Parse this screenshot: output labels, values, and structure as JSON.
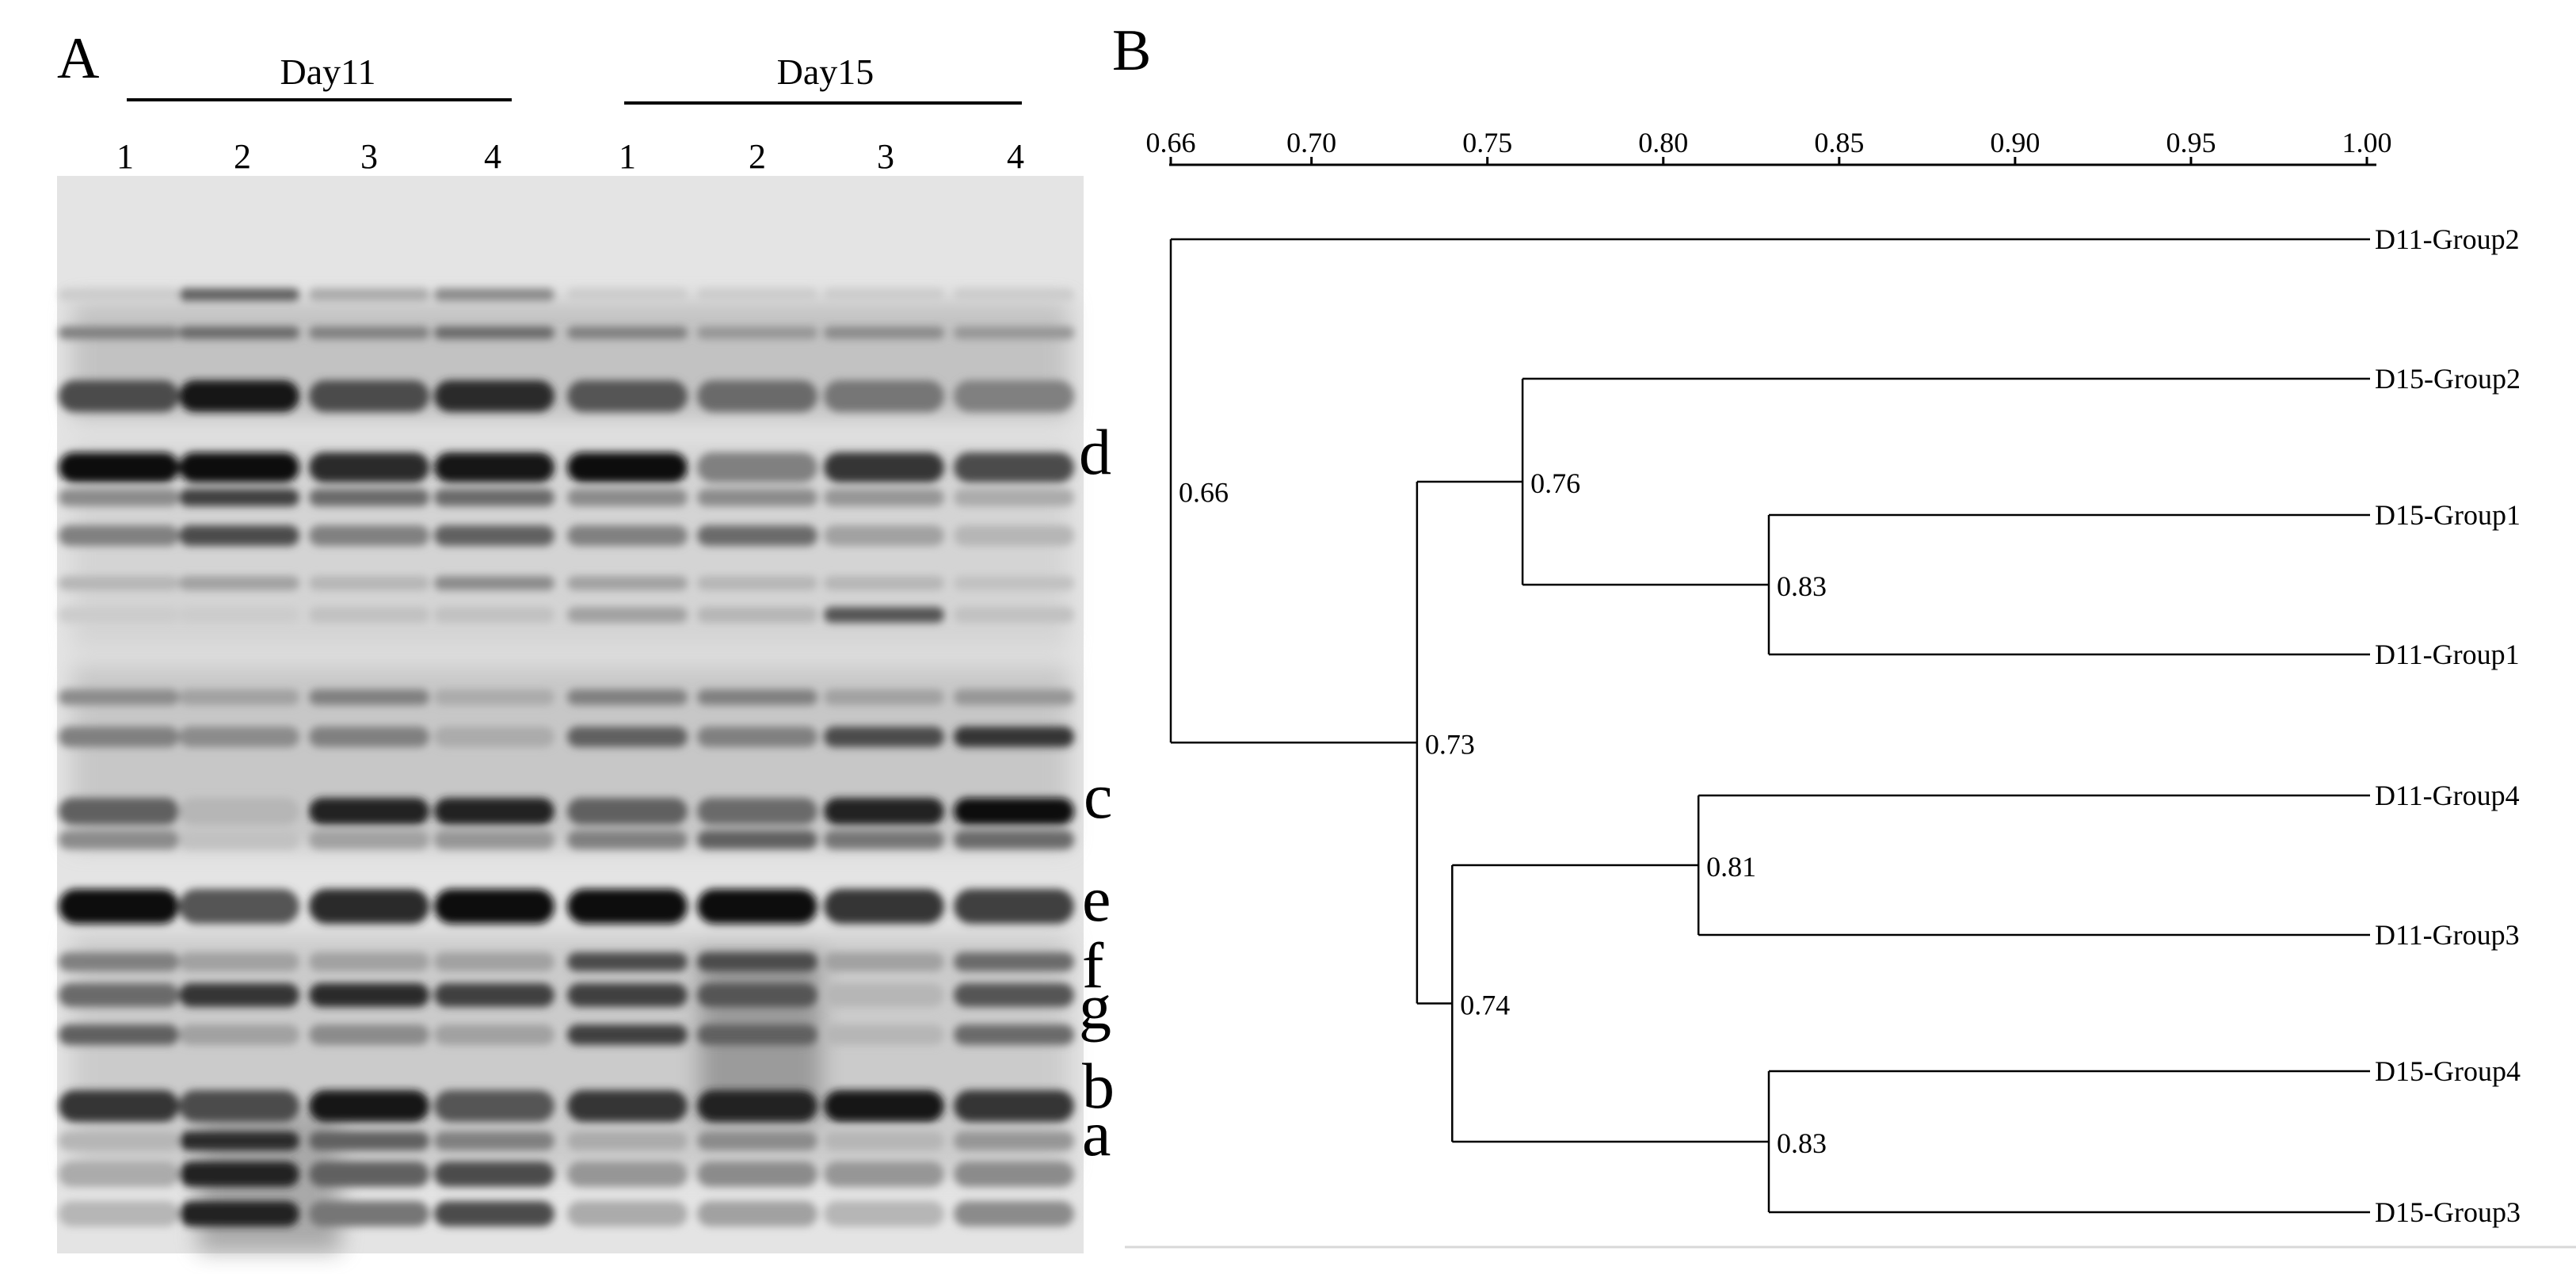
{
  "figure": {
    "panel_a": {
      "letter": "A",
      "groups": [
        {
          "label": "Day11",
          "lanes": [
            "1",
            "2",
            "3",
            "4"
          ]
        },
        {
          "label": "Day15",
          "lanes": [
            "1",
            "2",
            "3",
            "4"
          ]
        }
      ],
      "band_markers": [
        "d",
        "c",
        "e",
        "f",
        "g",
        "b",
        "a"
      ]
    },
    "panel_b": {
      "letter": "B",
      "axis_ticks": [
        "0.66",
        "0.70",
        "0.75",
        "0.80",
        "0.85",
        "0.90",
        "0.95",
        "1.00"
      ],
      "leaves": [
        "D11-Group2",
        "D15-Group2",
        "D15-Group1",
        "D11-Group1",
        "D11-Group4",
        "D11-Group3",
        "D15-Group4",
        "D15-Group3"
      ],
      "nodes": [
        {
          "label": "0.83",
          "similarity": 0.83,
          "joins": [
            "D15-Group1",
            "D11-Group1"
          ]
        },
        {
          "label": "0.76",
          "similarity": 0.76,
          "joins": [
            "D15-Group2",
            "D15-Group1 + D11-Group1"
          ]
        },
        {
          "label": "0.81",
          "similarity": 0.81,
          "joins": [
            "D11-Group4",
            "D11-Group3"
          ]
        },
        {
          "label": "0.83",
          "similarity": 0.83,
          "joins": [
            "D15-Group4",
            "D15-Group3"
          ]
        },
        {
          "label": "0.74",
          "similarity": 0.74,
          "joins": [
            "D11-Group4 + D11-Group3",
            "D15-Group4 + D15-Group3"
          ]
        },
        {
          "label": "0.73",
          "similarity": 0.73,
          "joins": [
            "D15-Group2 + D15-Group1 + D11-Group1",
            "D11-Group4 + D11-Group3 + D15-Group4 + D15-Group3"
          ]
        },
        {
          "label": "0.66",
          "similarity": 0.66,
          "joins": [
            "D11-Group2",
            "all other groups"
          ]
        }
      ]
    }
  }
}
